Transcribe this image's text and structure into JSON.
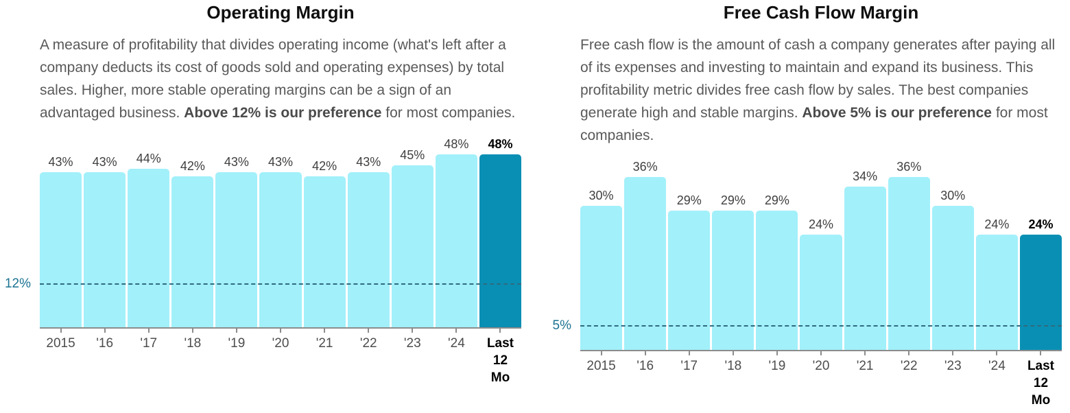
{
  "colors": {
    "bar_light": "#A2F0FA",
    "bar_highlight": "#0A8FB4",
    "ref_line": "#2E6B80",
    "ref_label": "#1B7392",
    "axis": "#8C8C8C",
    "value_label": "#3F3F3F",
    "x_label": "#4D4D4D",
    "title": "#0F0F0F",
    "description": "#595959"
  },
  "panels": [
    {
      "desc_start": "A measure of profitability that divides operating income (what's left after a company deducts its cost of goods sold and operating expenses) by total sales. Higher, more stable operating margins can be a sign of an advantaged business. ",
      "desc_bold": "Above 12% is our preference",
      "desc_end": " for most companies."
    },
    {
      "desc_start": "Free cash flow is the amount of cash a company generates after paying all of its expenses and investing to maintain and expand its business. This profitability metric divides free cash flow by sales. The best companies generate high and stable margins. ",
      "desc_bold": "Above 5% is our preference",
      "desc_end": " for most companies."
    }
  ],
  "chart_data": [
    {
      "type": "bar",
      "title": "Operating Margin",
      "categories": [
        "2015",
        "'16",
        "'17",
        "'18",
        "'19",
        "'20",
        "'21",
        "'22",
        "'23",
        "'24",
        "Last\n12\nMo"
      ],
      "values": [
        43,
        43,
        44,
        42,
        43,
        43,
        42,
        43,
        45,
        48,
        48
      ],
      "unit": "%",
      "highlight_last": true,
      "ref_line": {
        "value": 12,
        "label": "12%"
      },
      "ylim": [
        0,
        48
      ],
      "grid": false,
      "legend": "none",
      "value_labels": "above-bars"
    },
    {
      "type": "bar",
      "title": "Free Cash Flow Margin",
      "categories": [
        "2015",
        "'16",
        "'17",
        "'18",
        "'19",
        "'20",
        "'21",
        "'22",
        "'23",
        "'24",
        "Last\n12\nMo"
      ],
      "values": [
        30,
        36,
        29,
        29,
        29,
        24,
        34,
        36,
        30,
        24,
        24
      ],
      "unit": "%",
      "highlight_last": true,
      "ref_line": {
        "value": 5,
        "label": "5%"
      },
      "ylim": [
        0,
        36
      ],
      "grid": false,
      "legend": "none",
      "value_labels": "above-bars"
    }
  ]
}
